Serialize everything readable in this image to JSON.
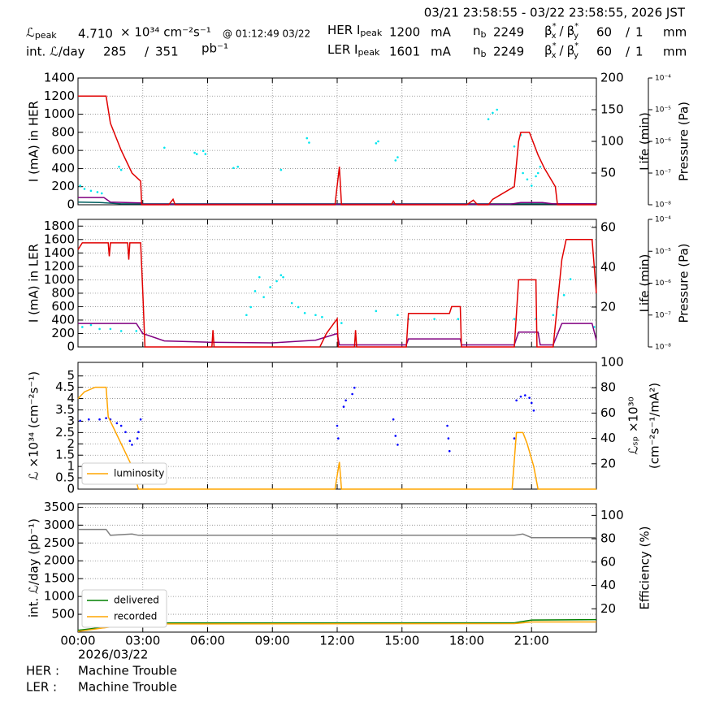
{
  "header": {
    "range": "03/21 23:58:55 - 03/22 23:58:55, 2026 JST",
    "lpeak": {
      "symbol": "ℒ",
      "sub": "peak",
      "value": "4.710",
      "unit": "× 10³⁴ cm⁻²s⁻¹",
      "time": "@ 01:12:49 03/22"
    },
    "intl": {
      "label": "int. ℒ/day",
      "recorded": "285",
      "sep": "/",
      "delivered": "351",
      "unit": "pb⁻¹"
    },
    "her": {
      "label": "HER I",
      "sub": "peak",
      "current": "1200",
      "unit": "mA",
      "nb": {
        "sym": "n",
        "sub": "b",
        "value": "2249"
      },
      "beta": {
        "sym": "β",
        "sup": "*",
        "sub1": "x",
        "sub2": "y",
        "sep": "/"
      },
      "bx": "60",
      "sep": "/",
      "by": "1",
      "bunit": "mm"
    },
    "ler": {
      "label": "LER I",
      "sub": "peak",
      "current": "1601",
      "unit": "mA",
      "nb": {
        "sym": "n",
        "sub": "b",
        "value": "2249"
      },
      "beta": {
        "sym": "β",
        "sup": "*",
        "sub1": "x",
        "sub2": "y",
        "sep": "/"
      },
      "bx": "60",
      "sep": "/",
      "by": "1",
      "bunit": "mm"
    }
  },
  "footer": {
    "her": "HER :",
    "her_status": "Machine Trouble",
    "ler": "LER :",
    "ler_status": "Machine Trouble"
  },
  "chart_data": [
    {
      "type": "line",
      "ylabel": "I (mA) in HER",
      "y2label": "Life (min)",
      "y3label": "Pressure (Pa)",
      "grid": true,
      "xlim": [
        0,
        24
      ],
      "xticks": [
        0,
        3,
        6,
        9,
        12,
        15,
        18,
        21
      ],
      "ylim": [
        0,
        1400
      ],
      "yticks": [
        0,
        200,
        400,
        600,
        800,
        1000,
        1200,
        1400
      ],
      "y2lim": [
        0,
        200
      ],
      "y2ticks": [
        50,
        100,
        150,
        200
      ],
      "y3lim": [
        1e-08,
        0.0001
      ],
      "y3log": true,
      "y3ticks": [
        {
          "value": 0.0001,
          "label": "10⁻⁴"
        },
        {
          "value": 1e-05,
          "label": "10⁻⁵"
        },
        {
          "value": 1e-06,
          "label": "10⁻⁶"
        },
        {
          "value": 1e-07,
          "label": "10⁻⁷"
        },
        {
          "value": 1e-08,
          "label": "10⁻⁸"
        }
      ],
      "series": [
        {
          "style": "scatter",
          "axis": "y2",
          "color": "#00e5ee",
          "x": [
            0.1,
            0.3,
            0.6,
            0.9,
            1.1,
            1.9,
            2.0,
            4.0,
            5.4,
            5.5,
            5.8,
            5.9,
            7.2,
            7.4,
            9.4,
            10.6,
            10.7,
            13.8,
            13.9,
            14.7,
            14.8,
            19.0,
            19.2,
            19.4,
            20.2,
            20.5,
            20.6,
            20.8,
            21.0,
            21.2,
            21.3,
            21.4
          ],
          "values": [
            30,
            25,
            22,
            20,
            18,
            60,
            55,
            90,
            82,
            80,
            85,
            80,
            58,
            60,
            55,
            105,
            98,
            97,
            100,
            70,
            75,
            135,
            145,
            150,
            92,
            110,
            50,
            40,
            30,
            45,
            50,
            60
          ]
        },
        {
          "style": "line",
          "color": "#006060",
          "x": [
            0,
            1,
            2,
            24
          ],
          "values": [
            30,
            25,
            10,
            10
          ]
        },
        {
          "style": "line",
          "color": "#800080",
          "x": [
            0,
            1.2,
            1.5,
            2.9,
            3,
            20,
            20.5,
            21.5,
            22,
            24
          ],
          "values": [
            80,
            80,
            30,
            20,
            5,
            5,
            25,
            25,
            10,
            10
          ]
        },
        {
          "style": "line",
          "color": "#e00000",
          "x": [
            0,
            1.3,
            1.5,
            2,
            2.5,
            2.9,
            2.95,
            4.2,
            4.4,
            4.5,
            11.9,
            12.1,
            12.2,
            14.5,
            14.6,
            14.7,
            18,
            18.3,
            18.5,
            19,
            19.2,
            20.2,
            20.4,
            20.5,
            20.9,
            21.3,
            21.6,
            22.1,
            22.2,
            24
          ],
          "values": [
            1200,
            1200,
            900,
            600,
            350,
            260,
            0,
            0,
            60,
            0,
            0,
            420,
            0,
            0,
            40,
            0,
            0,
            50,
            0,
            0,
            60,
            200,
            700,
            800,
            800,
            550,
            400,
            200,
            0,
            0
          ]
        }
      ]
    },
    {
      "type": "line",
      "ylabel": "I (mA) in LER",
      "y2label": "Life (min)",
      "y3label": "Pressure (Pa)",
      "grid": true,
      "xlim": [
        0,
        24
      ],
      "xticks": [
        0,
        3,
        6,
        9,
        12,
        15,
        18,
        21
      ],
      "ylim": [
        0,
        1900
      ],
      "yticks": [
        0,
        200,
        400,
        600,
        800,
        1000,
        1200,
        1400,
        1600,
        1800
      ],
      "y2lim": [
        0,
        64
      ],
      "y2ticks": [
        20,
        40,
        60
      ],
      "y3lim": [
        1e-08,
        0.0001
      ],
      "y3log": true,
      "y3ticks": [
        {
          "value": 0.0001,
          "label": "10⁻⁴"
        },
        {
          "value": 1e-05,
          "label": "10⁻⁵"
        },
        {
          "value": 1e-06,
          "label": "10⁻⁶"
        },
        {
          "value": 1e-07,
          "label": "10⁻⁷"
        },
        {
          "value": 1e-08,
          "label": "10⁻⁸"
        }
      ],
      "series": [
        {
          "style": "scatter",
          "axis": "y2",
          "color": "#00e5ee",
          "x": [
            0.2,
            0.6,
            1.0,
            1.5,
            2.0,
            2.7,
            7.8,
            8.0,
            8.2,
            8.4,
            8.6,
            8.9,
            9.2,
            9.4,
            9.5,
            9.9,
            10.2,
            10.5,
            11.0,
            11.3,
            12.2,
            13.8,
            14.8,
            15.3,
            16.5,
            17.6,
            20.2,
            21.2,
            22.0,
            22.2,
            22.5,
            22.8,
            23.9
          ],
          "values": [
            10,
            11,
            9,
            9,
            8,
            8,
            16,
            20,
            28,
            35,
            25,
            30,
            33,
            36,
            35,
            22,
            20,
            17,
            16,
            15,
            12,
            18,
            16,
            14,
            14,
            14,
            14,
            14,
            16,
            20,
            26,
            34,
            10
          ]
        },
        {
          "style": "line",
          "color": "#800080",
          "x": [
            0,
            2.7,
            3,
            4,
            6,
            9,
            11,
            12,
            12.1,
            15.2,
            15.3,
            17.7,
            17.75,
            20.2,
            20.4,
            21.3,
            21.4,
            22,
            22.4,
            23.8,
            24
          ],
          "values": [
            350,
            350,
            200,
            90,
            70,
            60,
            100,
            200,
            30,
            30,
            120,
            120,
            30,
            30,
            220,
            220,
            30,
            30,
            350,
            350,
            100
          ]
        },
        {
          "style": "line",
          "color": "#e00000",
          "x": [
            0,
            0.2,
            1.4,
            1.45,
            1.5,
            2.3,
            2.35,
            2.4,
            2.9,
            3,
            3.1,
            6.2,
            6.25,
            6.3,
            11.2,
            11.5,
            12,
            12.05,
            12.8,
            12.85,
            12.9,
            15.2,
            15.3,
            17.2,
            17.3,
            17.7,
            17.75,
            20.2,
            20.4,
            21.2,
            21.25,
            22,
            22.4,
            22.6,
            23.8,
            24
          ],
          "values": [
            1450,
            1550,
            1550,
            1350,
            1550,
            1550,
            1300,
            1550,
            1550,
            800,
            0,
            0,
            250,
            0,
            0,
            200,
            420,
            0,
            0,
            250,
            0,
            0,
            500,
            500,
            600,
            600,
            0,
            0,
            1000,
            1000,
            0,
            0,
            1300,
            1600,
            1600,
            800
          ]
        }
      ]
    },
    {
      "type": "line",
      "ylabel": "ℒ ×10³⁴ (cm⁻²s⁻¹)",
      "y2label": [
        "ℒₛₚ ×10³⁰",
        "(cm⁻²s⁻¹/mA²)"
      ],
      "grid": true,
      "legend": "lower left",
      "xlim": [
        0,
        24
      ],
      "xticks": [
        0,
        3,
        6,
        9,
        12,
        15,
        18,
        21
      ],
      "ylim": [
        0,
        5.6
      ],
      "yticks": [
        0,
        0.5,
        1,
        1.5,
        2,
        2.5,
        3,
        3.5,
        4,
        4.5,
        5
      ],
      "y2lim": [
        0,
        100
      ],
      "y2ticks": [
        20,
        40,
        60,
        80,
        100
      ],
      "series": [
        {
          "style": "scatter",
          "axis": "y2",
          "color": "#0000ff",
          "x": [
            0.1,
            0.5,
            1.0,
            1.3,
            1.5,
            1.8,
            2.0,
            2.2,
            2.4,
            2.5,
            2.75,
            2.8,
            2.9,
            12.0,
            12.05,
            12.3,
            12.4,
            12.7,
            12.8,
            14.6,
            14.7,
            14.8,
            17.1,
            17.15,
            17.2,
            20.2,
            20.3,
            20.5,
            20.7,
            20.9,
            21.0,
            21.1
          ],
          "values": [
            54,
            55,
            55,
            56,
            55,
            52,
            50,
            45,
            38,
            35,
            40,
            45,
            55,
            50,
            40,
            65,
            70,
            75,
            80,
            55,
            42,
            35,
            50,
            40,
            30,
            40,
            70,
            73,
            74,
            72,
            68,
            62
          ]
        },
        {
          "style": "line",
          "name": "luminosity",
          "color": "#ffa500",
          "x": [
            0,
            0.3,
            0.8,
            1.3,
            1.4,
            2,
            2.5,
            2.8,
            11.9,
            12.1,
            12.2,
            20.1,
            20.3,
            20.6,
            20.8,
            21.1,
            21.3,
            24
          ],
          "values": [
            4.0,
            4.3,
            4.5,
            4.5,
            3.2,
            2.0,
            1.0,
            0,
            0,
            1.2,
            0,
            0,
            2.5,
            2.5,
            2.0,
            1.0,
            0,
            0
          ]
        }
      ]
    },
    {
      "type": "line",
      "ylabel": "int. ℒ/day (pb⁻¹)",
      "y2label": "Efficiency (%)",
      "xlabel": "2026/03/22",
      "grid": true,
      "legend": "lower left",
      "xlim": [
        0,
        24
      ],
      "xticks": [
        {
          "value": 0,
          "label": "00:00"
        },
        {
          "value": 3,
          "label": "03:00"
        },
        {
          "value": 6,
          "label": "06:00"
        },
        {
          "value": 9,
          "label": "09:00"
        },
        {
          "value": 12,
          "label": "12:00"
        },
        {
          "value": 15,
          "label": "15:00"
        },
        {
          "value": 18,
          "label": "18:00"
        },
        {
          "value": 21,
          "label": "21:00"
        }
      ],
      "ylim": [
        0,
        3600
      ],
      "yticks": [
        500,
        1000,
        1500,
        2000,
        2500,
        3000,
        3500
      ],
      "y2lim": [
        0,
        110
      ],
      "y2ticks": [
        20,
        40,
        60,
        80,
        100
      ],
      "series": [
        {
          "style": "line",
          "axis": "y2",
          "color": "#808080",
          "x": [
            0,
            1.3,
            1.5,
            2.5,
            2.8,
            20.2,
            20.6,
            21,
            24
          ],
          "values": [
            88,
            88,
            83,
            84,
            83,
            83,
            84,
            81,
            81
          ]
        },
        {
          "style": "line",
          "name": "delivered",
          "color": "#008000",
          "x": [
            0,
            2,
            2.5,
            20.2,
            21,
            24
          ],
          "values": [
            50,
            200,
            255,
            260,
            340,
            351
          ]
        },
        {
          "style": "line",
          "name": "recorded",
          "color": "#ffa500",
          "x": [
            0,
            2.5,
            20.2,
            21,
            24
          ],
          "values": [
            20,
            230,
            240,
            285,
            285
          ]
        }
      ]
    }
  ]
}
